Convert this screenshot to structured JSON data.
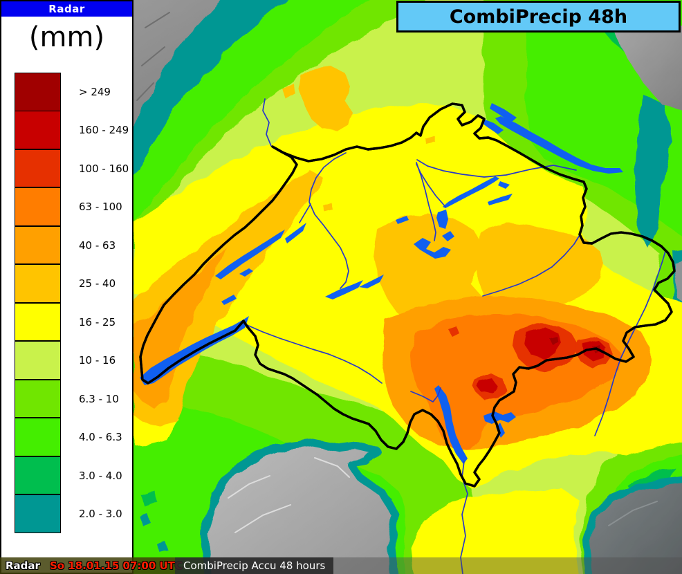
{
  "titlebox": {
    "title": "CombiPrecip 48h",
    "background": "#63C9F7"
  },
  "legend": {
    "header": "Radar",
    "unit": "(mm)",
    "header_color": "#0000F0",
    "scale": [
      {
        "label": "> 249",
        "color": "#A00000"
      },
      {
        "label": "160 - 249",
        "color": "#C80000"
      },
      {
        "label": "100 - 160",
        "color": "#E63000"
      },
      {
        "label": "63 - 100",
        "color": "#FF7D00"
      },
      {
        "label": "40 - 63",
        "color": "#FFA000"
      },
      {
        "label": "25 - 40",
        "color": "#FFC400"
      },
      {
        "label": "16 - 25",
        "color": "#FFFF00"
      },
      {
        "label": "10 - 16",
        "color": "#C9F24B"
      },
      {
        "label": "6.3 - 10",
        "color": "#70E600"
      },
      {
        "label": "4.0 - 6.3",
        "color": "#44EE00"
      },
      {
        "label": "3.0 - 4.0",
        "color": "#00BE4E"
      },
      {
        "label": "2.0 - 3.0",
        "color": "#009793"
      }
    ]
  },
  "statusbar": {
    "source": "Radar",
    "timestamp": "So 18.01.15 07:00 UTC",
    "product": "CombiPrecip Accu 48 hours"
  },
  "map": {
    "region": "Switzerland",
    "lake_color": "#1060F0",
    "river_color": "#2838C8",
    "border_color": "#000000",
    "no_data_terrain_color": "#9A9A9A"
  }
}
